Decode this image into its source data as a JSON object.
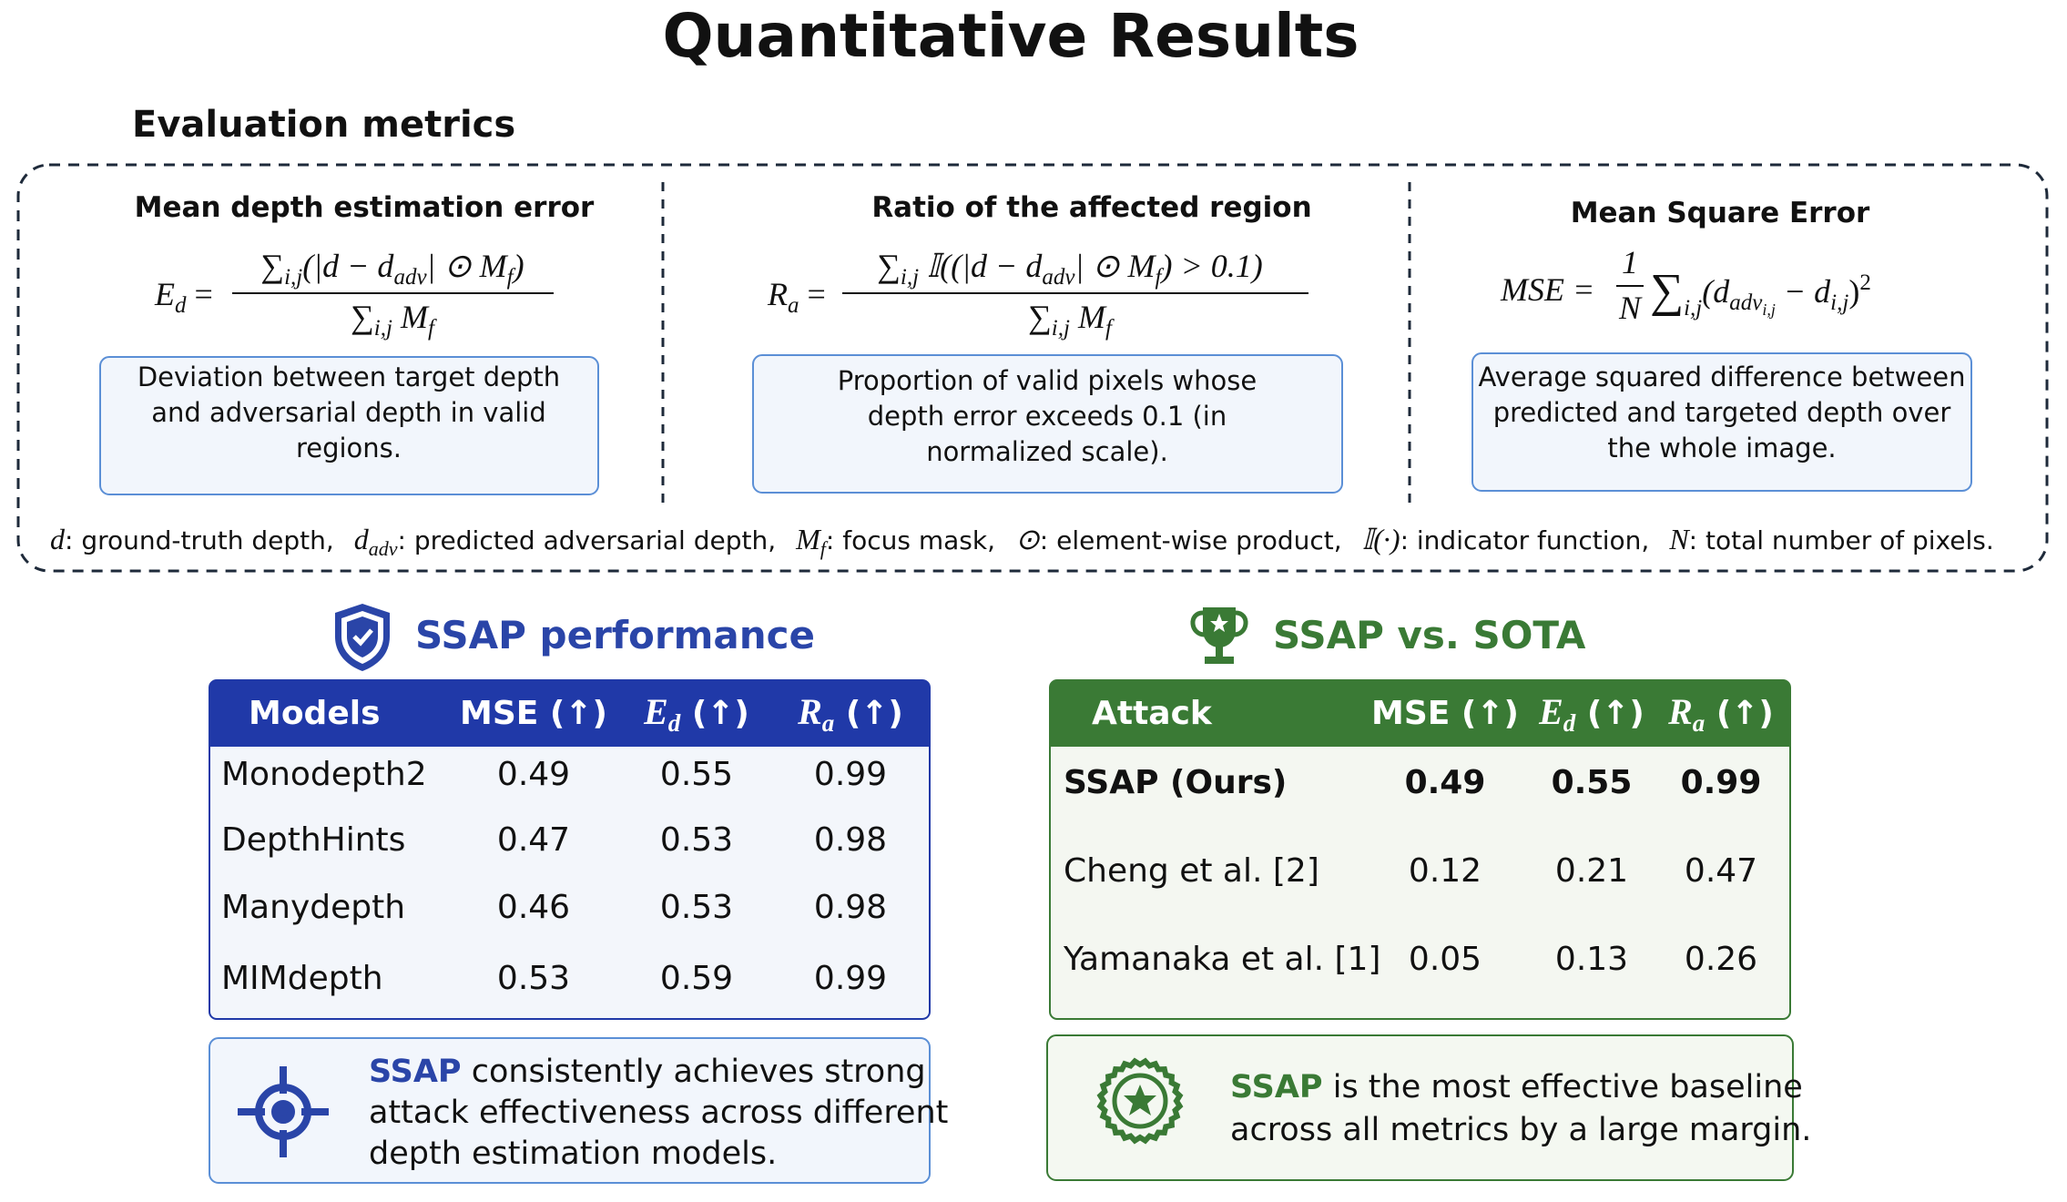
{
  "title": "Quantitative Results",
  "metrics_section": {
    "heading": "Evaluation metrics",
    "metrics": [
      {
        "name": "Mean depth estimation error",
        "formula": {
          "lhs": [
            "E",
            "d",
            " ="
          ],
          "numerator": [
            "∑",
            "i,j",
            "(|d − d",
            "adv",
            "| ⊙ M",
            "f",
            ")"
          ],
          "denominator": [
            "∑",
            "i,j",
            " M",
            "f"
          ]
        },
        "description": [
          "Deviation between target depth",
          "and adversarial depth in valid",
          "regions."
        ]
      },
      {
        "name": "Ratio of the affected region",
        "formula": {
          "lhs": [
            "R",
            "a",
            " ="
          ],
          "numerator": [
            "∑",
            "i,j",
            " 𝕀((|d − d",
            "adv",
            "| ⊙ M",
            "f",
            ") > 0.1)"
          ],
          "denominator": [
            "∑",
            "i,j",
            " M",
            "f"
          ]
        },
        "description": [
          "Proportion of valid pixels whose",
          "depth error exceeds 0.1 (in",
          "normalized scale)."
        ]
      },
      {
        "name": "Mean Square Error",
        "formula": {
          "lhs": [
            "MSE ="
          ],
          "numerator": [
            "1"
          ],
          "denominator": [
            "N"
          ],
          "expression": [
            "∑",
            "i,j",
            "(d",
            "adv",
            "i,j",
            " − d",
            "i,j",
            ")",
            "2"
          ]
        },
        "description": [
          "Average squared difference between",
          "predicted and targeted depth over",
          "the whole image."
        ]
      }
    ],
    "notation": [
      {
        "symbol": [
          "d"
        ],
        "text": ": ground-truth depth,"
      },
      {
        "symbol": [
          "d",
          "adv"
        ],
        "text": ": predicted adversarial depth,"
      },
      {
        "symbol": [
          "M",
          "f"
        ],
        "text": ": focus mask,"
      },
      {
        "symbol": [
          "⊙"
        ],
        "text": ": element-wise product,"
      },
      {
        "symbol": [
          "𝕀(·)"
        ],
        "text": ": indicator function,"
      },
      {
        "symbol": [
          "N"
        ],
        "text": ": total number of pixels."
      }
    ]
  },
  "performance": {
    "heading": "SSAP performance",
    "table": {
      "header": [
        "Models",
        "MSE (↑)",
        [
          "E",
          "d",
          " (↑)"
        ],
        [
          "R",
          "a",
          " (↑)"
        ]
      ],
      "rows": [
        [
          "Monodepth2",
          0.49,
          0.55,
          0.99
        ],
        [
          "DepthHints",
          0.47,
          0.53,
          0.98
        ],
        [
          "Manydepth",
          0.46,
          0.53,
          0.98
        ],
        [
          "MIMdepth",
          0.53,
          0.59,
          0.99
        ]
      ]
    },
    "summary": {
      "highlight": "SSAP",
      "lines": [
        " consistently achieves strong",
        "attack effectiveness across different",
        "depth estimation models."
      ]
    }
  },
  "comparison": {
    "heading": "SSAP vs. SOTA",
    "table": {
      "header": [
        "Attack",
        "MSE (↑)",
        [
          "E",
          "d",
          " (↑)"
        ],
        [
          "R",
          "a",
          " (↑)"
        ]
      ],
      "rows": [
        [
          "SSAP (Ours)",
          0.49,
          0.55,
          0.99
        ],
        [
          "Cheng et al. [2]",
          0.12,
          0.21,
          0.47
        ],
        [
          "Yamanaka et al. [1]",
          0.05,
          0.13,
          0.26
        ]
      ]
    },
    "summary": {
      "highlight": "SSAP",
      "lines": [
        " is the most effective baseline",
        "across all metrics by a large margin."
      ]
    }
  }
}
